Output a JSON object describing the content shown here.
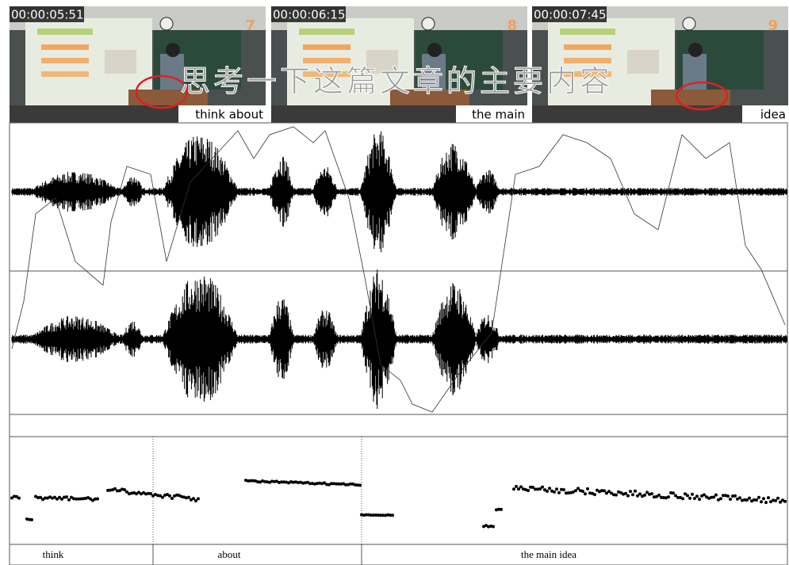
{
  "frames": [
    {
      "timestamp": "00:00:05:51",
      "number": "7",
      "caption": "think about"
    },
    {
      "timestamp": "00:00:06:15",
      "number": "8",
      "caption": "the  main"
    },
    {
      "timestamp": "00:00:07:45",
      "number": "9",
      "caption": "idea"
    }
  ],
  "subtitle": "思考一下这篇文章的主要内容",
  "tiers": [
    "think",
    "about",
    "the main idea"
  ]
}
